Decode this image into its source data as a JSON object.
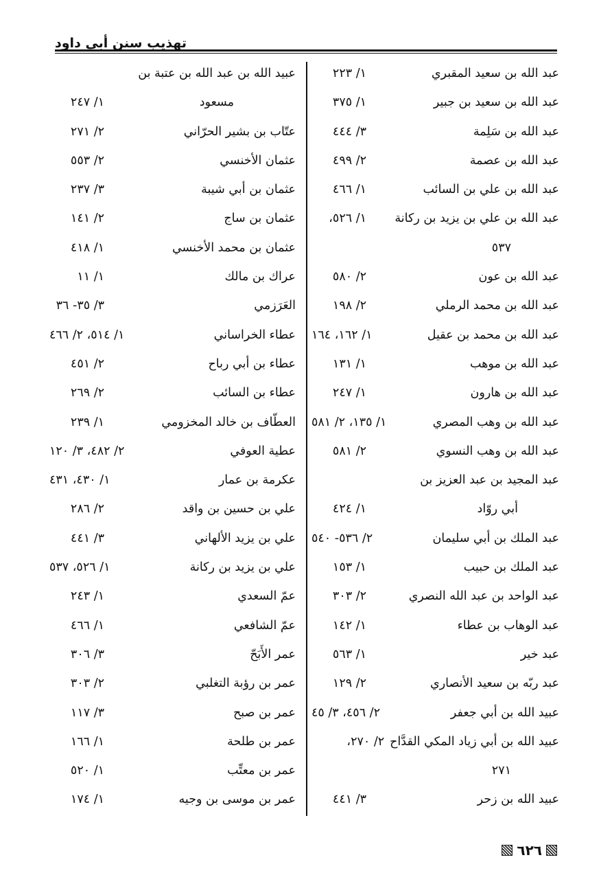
{
  "header": {
    "title": "تهذيب سنن أبي داود"
  },
  "page_number": "٦٢٦",
  "right_column": [
    {
      "name": "عبد الله بن سعيد المقبري",
      "ref": "١/ ٢٢٣"
    },
    {
      "name": "عبد الله بن سعيد بن جبير",
      "ref": "١/ ٣٧٥"
    },
    {
      "name": "عبد الله بن سَلِمة",
      "ref": "٣/ ٤٤٤"
    },
    {
      "name": "عبد الله بن عصمة",
      "ref": "٢/ ٤٩٩"
    },
    {
      "name": "عبد الله بن علي بن السائب",
      "ref": "١/ ٤٦٦"
    },
    {
      "name": "عبد الله بن علي بن يزيد بن ركانة",
      "ref": "١/ ٥٢٦،"
    },
    {
      "name": "٥٣٧",
      "ref": "",
      "type": "continuation"
    },
    {
      "name": "عبد الله بن عون",
      "ref": "٢/ ٥٨٠"
    },
    {
      "name": "عبد الله بن محمد الرملي",
      "ref": "٢/ ١٩٨"
    },
    {
      "name": "عبد الله بن محمد بن عقيل",
      "ref": "١/ ١٦٢، ١٦٤"
    },
    {
      "name": "عبد الله بن موهب",
      "ref": "١/ ١٣١"
    },
    {
      "name": "عبد الله بن هارون",
      "ref": "١/ ٢٤٧"
    },
    {
      "name": "عبد الله بن وهب المصري",
      "ref": "١/ ١٣٥، ٢/ ٥٨١"
    },
    {
      "name": "عبد الله بن وهب النسوي",
      "ref": "٢/ ٥٨١"
    },
    {
      "name": "عبد المجيد بن عبد العزيز بن",
      "ref": ""
    },
    {
      "name": "أبي روّاد",
      "ref": "١/ ٤٢٤",
      "type": "indent"
    },
    {
      "name": "عبد الملك بن أبي سليمان",
      "ref": "٢/ ٥٣٦- ٥٤٠"
    },
    {
      "name": "عبد الملك بن حبيب",
      "ref": "١/ ١٥٣"
    },
    {
      "name": "عبد الواحد بن عبد الله النصري",
      "ref": "٢/ ٣٠٣"
    },
    {
      "name": "عبد الوهاب بن عطاء",
      "ref": "١/ ١٤٢"
    },
    {
      "name": "عبد خير",
      "ref": "١/ ٥٦٣"
    },
    {
      "name": "عبد ربّه بن سعيد الأنصاري",
      "ref": "٢/ ١٢٩"
    },
    {
      "name": "عبيد الله بن أبي جعفر",
      "ref": "٢/ ٤٥٦، ٣/ ٤٥"
    },
    {
      "name": "عبيد الله بن أبي زياد المكي القدَّاح",
      "ref": "٢/ ٢٧٠،",
      "type": "full"
    },
    {
      "name": "٢٧١",
      "ref": "",
      "type": "continuation"
    },
    {
      "name": "عبيد الله بن زحر",
      "ref": "٣/ ٤٤١"
    }
  ],
  "left_column": [
    {
      "name": "عبيد الله بن عبد الله بن عتبة بن",
      "ref": ""
    },
    {
      "name": "مسعود",
      "ref": "١/ ٢٤٧",
      "type": "continuation-center"
    },
    {
      "name": "عتّاب بن بشير الحرّاني",
      "ref": "٢/ ٢٧١"
    },
    {
      "name": "عثمان الأخنسي",
      "ref": "٢/ ٥٥٣"
    },
    {
      "name": "عثمان بن أبي شيبة",
      "ref": "٣/ ٢٣٧"
    },
    {
      "name": "عثمان بن ساج",
      "ref": "٢/ ١٤١"
    },
    {
      "name": "عثمان بن محمد الأخنسي",
      "ref": "١/ ٤١٨"
    },
    {
      "name": "عراك بن مالك",
      "ref": "١/ ١١"
    },
    {
      "name": "العَرَزمي",
      "ref": "٣/ ٣٥- ٣٦"
    },
    {
      "name": "عطاء الخراساني",
      "ref": "١/ ٥١٤، ٢/ ٤٦٦"
    },
    {
      "name": "عطاء بن أبي رباح",
      "ref": "٢/ ٤٥١"
    },
    {
      "name": "عطاء بن السائب",
      "ref": "٢/ ٢٦٩"
    },
    {
      "name": "العطّاف بن خالد المخزومي",
      "ref": "١/ ٢٣٩"
    },
    {
      "name": "عطية العوفي",
      "ref": "٢/ ٤٨٢، ٣/ ١٢٠"
    },
    {
      "name": "عكرمة بن عمار",
      "ref": "١/ ٤٣٠، ٤٣١"
    },
    {
      "name": "علي بن حسين بن واقد",
      "ref": "٢/ ٢٨٦"
    },
    {
      "name": "علي بن يزيد الألهاني",
      "ref": "٣/ ٤٤١"
    },
    {
      "name": "علي بن يزيد بن ركانة",
      "ref": "١/ ٥٢٦، ٥٣٧"
    },
    {
      "name": "عمّ السعدي",
      "ref": "١/ ٢٤٣"
    },
    {
      "name": "عمّ الشافعي",
      "ref": "١/ ٤٦٦"
    },
    {
      "name": "عمر الأَبَحّ",
      "ref": "٣/ ٣٠٦"
    },
    {
      "name": "عمر بن رؤبة التغلبي",
      "ref": "٢/ ٣٠٣"
    },
    {
      "name": "عمر بن صبح",
      "ref": "٣/ ١١٧"
    },
    {
      "name": "عمر بن طلحة",
      "ref": "١/ ١٦٦"
    },
    {
      "name": "عمر بن معتِّب",
      "ref": "١/ ٥٢٠"
    },
    {
      "name": "عمر بن موسى بن وجيه",
      "ref": "١/ ١٧٤"
    }
  ]
}
